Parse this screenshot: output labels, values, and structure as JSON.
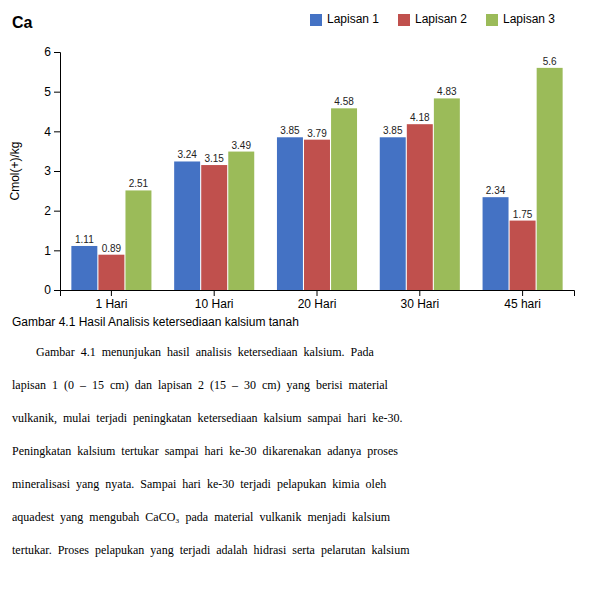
{
  "chart_data": {
    "type": "bar",
    "title": "Ca",
    "ylabel": "Cmol(+)/kg",
    "categories": [
      "1 Hari",
      "10 Hari",
      "20 Hari",
      "30 Hari",
      "45 hari"
    ],
    "series": [
      {
        "name": "Lapisan 1",
        "color": "#4472C4",
        "values": [
          1.11,
          3.24,
          3.85,
          3.85,
          2.34
        ]
      },
      {
        "name": "Lapisan 2",
        "color": "#C0504D",
        "values": [
          0.89,
          3.15,
          3.79,
          4.18,
          1.75
        ]
      },
      {
        "name": "Lapisan 3",
        "color": "#9BBB59",
        "values": [
          2.51,
          3.49,
          4.58,
          4.83,
          5.6
        ]
      }
    ],
    "ylim": [
      0,
      6
    ],
    "yticks": [
      0,
      1,
      2,
      3,
      4,
      5,
      6
    ],
    "grid": false,
    "legend": "upper right",
    "data_labels": true,
    "annotations": [
      "Gambar 4.1 Hasil Analisis ketersediaan kalsium tanah",
      "        Gambar  4.1  menunjukan  hasil  analisis  ketersediaan  kalsium.  Pada",
      "lapisan  1  (0  –  15  cm)  dan  lapisan  2  (15  –  30  cm)  yang  berisi  material",
      "vulkanik,  mulai  terjadi  peningkatan  ketersediaan  kalsium  sampai  hari  ke-30.",
      "Peningkatan  kalsium  tertukar  sampai  hari  ke-30  dikarenakan  adanya  proses",
      "mineralisasi  yang  nyata.  Sampai  hari  ke-30  terjadi  pelapukan  kimia  oleh",
      "aquadest  yang  mengubah  CaCO₃  pada  material  vulkanik  menjadi  kalsium",
      "tertukar.  Proses  pelapukan  yang  terjadi  adalah  hidrasi  serta  pelarutan  kalsium"
    ]
  }
}
